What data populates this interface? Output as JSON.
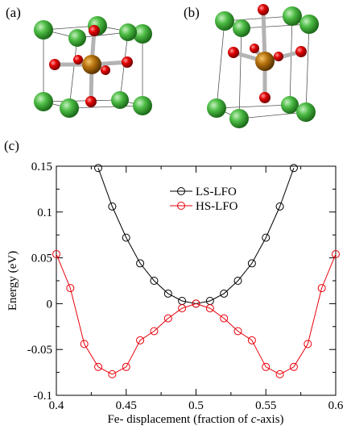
{
  "panels": {
    "a": "(a)",
    "b": "(b)",
    "c": "(c)"
  },
  "chart_data": {
    "type": "line",
    "title": "",
    "xlabel_prefix": "Fe- displacement (fraction of ",
    "xlabel_italic": "c",
    "xlabel_suffix": "-axis)",
    "ylabel": "Energy (eV)",
    "xlim": [
      0.4,
      0.6
    ],
    "ylim": [
      -0.1,
      0.15
    ],
    "xticks": [
      0.4,
      0.45,
      0.5,
      0.55,
      0.6
    ],
    "xtick_labels": [
      "0.4",
      "0.45",
      "0.5",
      "0.55",
      "0.6"
    ],
    "yticks": [
      -0.1,
      -0.05,
      0,
      0.05,
      0.1,
      0.15
    ],
    "ytick_labels": [
      "-0.1",
      "-0.05",
      "0",
      "0.05",
      "0.1",
      "0.15"
    ],
    "grid": false,
    "legend_position": "top-center",
    "series": [
      {
        "name": "LS-LFO",
        "color": "#000000",
        "marker": "open-circle",
        "x": [
          0.43,
          0.44,
          0.45,
          0.46,
          0.47,
          0.48,
          0.49,
          0.5,
          0.51,
          0.52,
          0.53,
          0.54,
          0.55,
          0.56,
          0.57
        ],
        "y": [
          0.148,
          0.106,
          0.072,
          0.044,
          0.025,
          0.011,
          0.003,
          0.0,
          0.003,
          0.011,
          0.025,
          0.044,
          0.072,
          0.106,
          0.148
        ]
      },
      {
        "name": "HS-LFO",
        "color": "#e8000b",
        "marker": "open-circle",
        "x": [
          0.4,
          0.41,
          0.42,
          0.43,
          0.44,
          0.45,
          0.46,
          0.47,
          0.48,
          0.49,
          0.5,
          0.51,
          0.52,
          0.53,
          0.54,
          0.55,
          0.56,
          0.57,
          0.58,
          0.59,
          0.6
        ],
        "y": [
          0.054,
          0.017,
          -0.044,
          -0.069,
          -0.077,
          -0.069,
          -0.04,
          -0.03,
          -0.016,
          -0.005,
          0.0,
          -0.005,
          -0.016,
          -0.03,
          -0.04,
          -0.069,
          -0.077,
          -0.069,
          -0.044,
          0.017,
          0.054
        ]
      }
    ]
  },
  "structure_colors": {
    "corner_atom": "#3daa35",
    "center_atom": "#b8730f",
    "oxygen_atom": "#e00000",
    "bond": "#b3b3b3"
  }
}
